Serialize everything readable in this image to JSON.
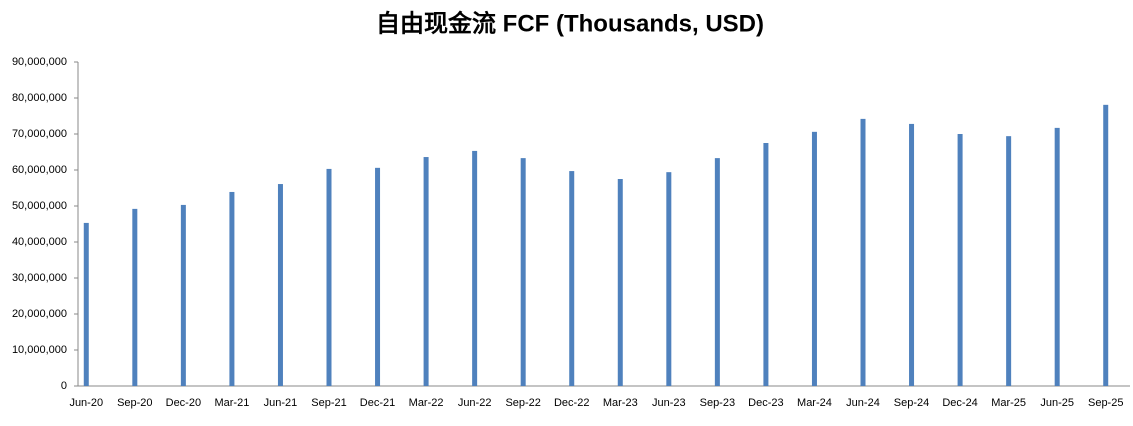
{
  "chart_data": {
    "type": "bar",
    "title": "自由现金流 FCF (Thousands, USD)",
    "categories": [
      "Jun-20",
      "Sep-20",
      "Dec-20",
      "Mar-21",
      "Jun-21",
      "Sep-21",
      "Dec-21",
      "Mar-22",
      "Jun-22",
      "Sep-22",
      "Dec-22",
      "Mar-23",
      "Jun-23",
      "Sep-23",
      "Dec-23",
      "Mar-24",
      "Jun-24",
      "Sep-24",
      "Dec-24",
      "Mar-25",
      "Jun-25",
      "Sep-25"
    ],
    "values": [
      45300000,
      49200000,
      50300000,
      53900000,
      56100000,
      60300000,
      60600000,
      63600000,
      65300000,
      63300000,
      59700000,
      57500000,
      59400000,
      63300000,
      67500000,
      70600000,
      74200000,
      72800000,
      70000000,
      69400000,
      71700000,
      78100000
    ],
    "color": "#4f81bd",
    "ylim": [
      0,
      90000000
    ],
    "yticks": [
      0,
      {
        "value": 10000000,
        "label": "10,000,000"
      },
      {
        "value": 20000000,
        "label": "20,000,000"
      },
      {
        "value": 30000000,
        "label": "30,000,000"
      },
      {
        "value": 40000000,
        "label": "40,000,000"
      },
      {
        "value": 50000000,
        "label": "50,000,000"
      },
      {
        "value": 60000000,
        "label": "60,000,000"
      },
      {
        "value": 70000000,
        "label": "70,000,000"
      },
      {
        "value": 80000000,
        "label": "80,000,000"
      },
      {
        "value": 90000000,
        "label": "90,000,000"
      }
    ],
    "grid": false
  }
}
